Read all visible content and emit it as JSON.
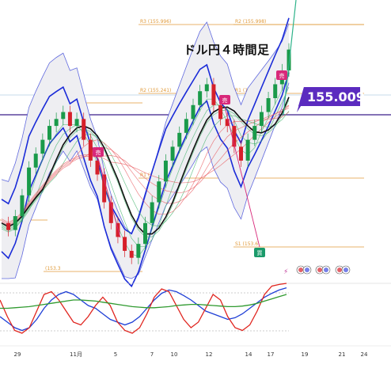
{
  "title": "ドル円４時間足",
  "chart_data": {
    "type": "candlestick",
    "title": "ドル円４時間足",
    "current_price": "155.009",
    "pivot_levels": [
      {
        "label": "R3 (155.996)",
        "value": 155.996
      },
      {
        "label": "R2 (155.998)",
        "value": 155.998
      },
      {
        "label": "R2 (155.241)",
        "value": 155.241
      },
      {
        "label": "R1 (155.246)",
        "value": 155.246
      },
      {
        "label": "R1 (155.131)",
        "value": 155.131
      },
      {
        "label": "R1 (154.330)",
        "value": 154.33
      },
      {
        "label": "S1 (153.6",
        "value": 153.6
      },
      {
        "label": "(153.3",
        "value": 153.3
      }
    ],
    "x_tick_labels": [
      "29",
      "11月",
      "5",
      "7",
      "10",
      "12",
      "14",
      "17",
      "19",
      "21",
      "24"
    ],
    "close_series": [
      153.1,
      153.0,
      153.2,
      153.5,
      153.9,
      154.1,
      154.3,
      154.5,
      154.6,
      154.7,
      154.5,
      154.6,
      154.3,
      154.0,
      153.8,
      153.4,
      153.1,
      152.9,
      152.7,
      152.6,
      152.8,
      153.1,
      153.4,
      153.7,
      154.0,
      154.2,
      154.4,
      154.6,
      154.8,
      155.0,
      155.1,
      154.8,
      154.6,
      154.5,
      154.2,
      154.0,
      154.3,
      154.5,
      154.7,
      154.9,
      155.1,
      155.3,
      155.6
    ],
    "oscillator": {
      "series": [
        {
          "color": "#1f3fd6",
          "values": [
            40,
            30,
            20,
            15,
            20,
            35,
            55,
            70,
            80,
            85,
            80,
            70,
            60,
            55,
            45,
            35,
            30,
            25,
            30,
            40,
            55,
            70,
            82,
            88,
            85,
            78,
            70,
            60,
            50,
            45,
            40,
            35,
            38,
            45,
            55,
            65,
            75,
            82,
            88,
            92
          ]
        },
        {
          "color": "#e0241e",
          "values": [
            70,
            40,
            15,
            10,
            20,
            50,
            80,
            85,
            70,
            50,
            30,
            25,
            40,
            60,
            75,
            60,
            30,
            15,
            10,
            20,
            45,
            75,
            90,
            85,
            60,
            35,
            20,
            30,
            55,
            80,
            70,
            40,
            20,
            15,
            25,
            50,
            80,
            95,
            98,
            100
          ]
        },
        {
          "color": "#2f9a2f",
          "values": [
            55,
            55,
            56,
            57,
            58,
            60,
            62,
            64,
            66,
            68,
            70,
            70,
            69,
            68,
            66,
            64,
            62,
            60,
            58,
            57,
            56,
            56,
            57,
            58,
            60,
            61,
            62,
            62,
            61,
            60,
            59,
            58,
            58,
            59,
            61,
            64,
            68,
            72,
            76,
            80
          ]
        }
      ]
    },
    "colors": {
      "up": "#1a9a4a",
      "down": "#d6202a",
      "badge": "#5b2bbf",
      "level": "#e09a3a",
      "band_outer": "#3b46d8",
      "ma": "#111111",
      "ribbon_red": "#e8585e",
      "ribbon_green": "#3fb36a",
      "sell_marker": "#d8287a",
      "buy_marker": "#1a9a6a"
    },
    "markers": [
      {
        "kind": "sell",
        "text": "売"
      },
      {
        "kind": "sell",
        "text": "売"
      },
      {
        "kind": "sell",
        "text": "売"
      },
      {
        "kind": "buy",
        "text": "買"
      }
    ]
  }
}
